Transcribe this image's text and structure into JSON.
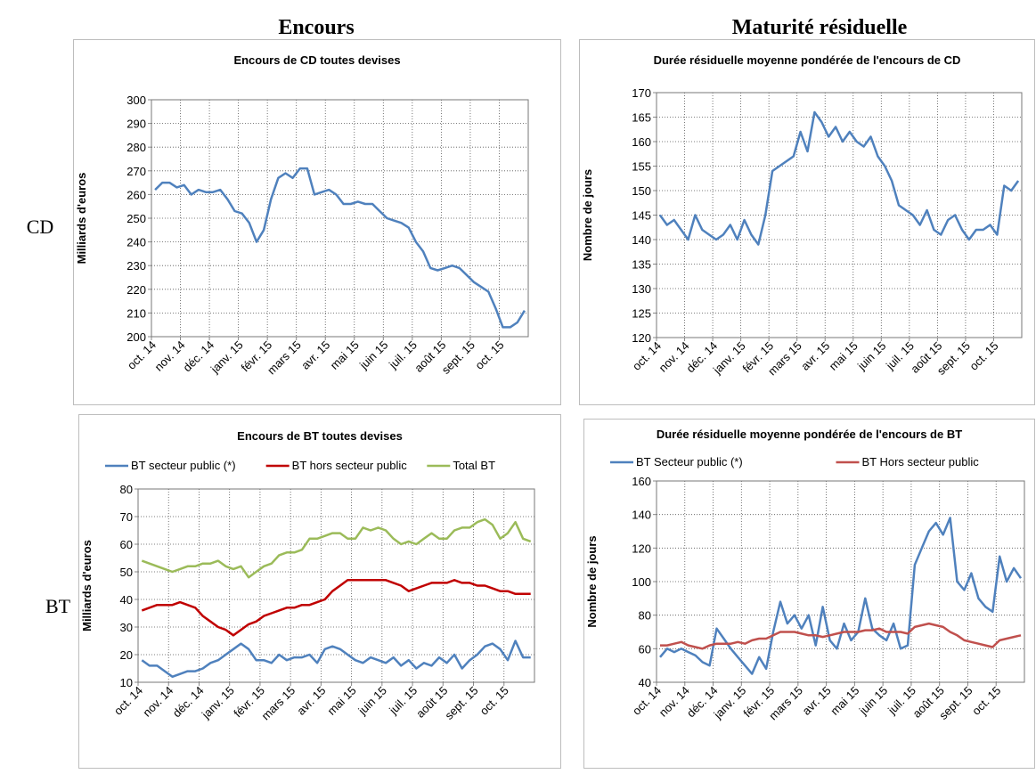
{
  "headings": {
    "left": "Encours",
    "right": "Maturité résiduelle",
    "rows": [
      "CD",
      "BT"
    ]
  },
  "chart_data": [
    {
      "type": "line",
      "title": "Encours de CD toutes devises",
      "y_label": "Milliards d'euros",
      "categories": [
        "oct. 14",
        null,
        null,
        null,
        "nov. 14",
        null,
        null,
        null,
        "déc. 14",
        null,
        null,
        null,
        "janv. 15",
        null,
        null,
        null,
        "févr. 15",
        null,
        null,
        null,
        "mars 15",
        null,
        null,
        null,
        "avr. 15",
        null,
        null,
        null,
        "mai 15",
        null,
        null,
        null,
        "juin 15",
        null,
        null,
        null,
        "juil. 15",
        null,
        null,
        null,
        "août 15",
        null,
        null,
        null,
        "sept. 15",
        null,
        null,
        null,
        "oct. 15",
        null,
        null,
        null
      ],
      "series": [
        {
          "name": null,
          "color": "#4f81bd",
          "values": [
            262,
            265,
            265,
            263,
            264,
            260,
            262,
            261,
            261,
            262,
            258,
            253,
            252,
            248,
            240,
            245,
            258,
            267,
            269,
            267,
            271,
            271,
            260,
            261,
            262,
            260,
            256,
            256,
            257,
            256,
            256,
            253,
            250,
            249,
            248,
            246,
            240,
            236,
            229,
            228,
            229,
            230,
            229,
            226,
            223,
            221,
            219,
            212,
            204,
            204,
            206,
            211
          ]
        }
      ],
      "ylim": [
        200,
        300
      ],
      "yticks": [
        200,
        210,
        220,
        230,
        240,
        250,
        260,
        270,
        280,
        290,
        300
      ],
      "grid": true,
      "legend": null
    },
    {
      "type": "line",
      "title": "Durée résiduelle moyenne pondérée de l'encours de CD",
      "y_label": "Nombre de jours",
      "categories": [
        "oct. 14",
        null,
        null,
        null,
        "nov. 14",
        null,
        null,
        null,
        "déc. 14",
        null,
        null,
        null,
        "janv. 15",
        null,
        null,
        null,
        "févr. 15",
        null,
        null,
        null,
        "mars 15",
        null,
        null,
        null,
        "avr. 15",
        null,
        null,
        null,
        "mai 15",
        null,
        null,
        null,
        "juin 15",
        null,
        null,
        null,
        "juil. 15",
        null,
        null,
        null,
        "août 15",
        null,
        null,
        null,
        "sept. 15",
        null,
        null,
        null,
        "oct. 15",
        null,
        null,
        null
      ],
      "series": [
        {
          "name": null,
          "color": "#4f81bd",
          "values": [
            145,
            143,
            144,
            142,
            140,
            145,
            142,
            141,
            140,
            141,
            143,
            140,
            144,
            141,
            139,
            145,
            154,
            155,
            156,
            157,
            162,
            158,
            166,
            164,
            161,
            163,
            160,
            162,
            160,
            159,
            161,
            157,
            155,
            152,
            147,
            146,
            145,
            143,
            146,
            142,
            141,
            144,
            145,
            142,
            140,
            142,
            142,
            143,
            141,
            151,
            150,
            152
          ]
        }
      ],
      "ylim": [
        120,
        170
      ],
      "yticks": [
        120,
        125,
        130,
        135,
        140,
        145,
        150,
        155,
        160,
        165,
        170
      ],
      "grid": true,
      "legend": null
    },
    {
      "type": "line",
      "title": "Encours de BT toutes devises",
      "y_label": "Milliards d'euros",
      "categories": [
        "oct. 14",
        null,
        null,
        null,
        "nov. 14",
        null,
        null,
        null,
        "déc. 14",
        null,
        null,
        null,
        "janv. 15",
        null,
        null,
        null,
        "févr. 15",
        null,
        null,
        null,
        "mars 15",
        null,
        null,
        null,
        "avr. 15",
        null,
        null,
        null,
        "mai 15",
        null,
        null,
        null,
        "juin 15",
        null,
        null,
        null,
        "juil. 15",
        null,
        null,
        null,
        "août 15",
        null,
        null,
        null,
        "sept. 15",
        null,
        null,
        null,
        "oct. 15",
        null,
        null,
        null
      ],
      "series": [
        {
          "name": "BT secteur public (*)",
          "color": "#4f81bd",
          "values": [
            18,
            16,
            16,
            14,
            12,
            13,
            14,
            14,
            15,
            17,
            18,
            20,
            22,
            24,
            22,
            18,
            18,
            17,
            20,
            18,
            19,
            19,
            20,
            17,
            22,
            23,
            22,
            20,
            18,
            17,
            19,
            18,
            17,
            19,
            16,
            18,
            15,
            17,
            16,
            19,
            17,
            20,
            15,
            18,
            20,
            23,
            24,
            22,
            18,
            25,
            19,
            19
          ]
        },
        {
          "name": "BT hors secteur public",
          "color": "#c00000",
          "values": [
            36,
            37,
            38,
            38,
            38,
            39,
            38,
            37,
            34,
            32,
            30,
            29,
            27,
            29,
            31,
            32,
            34,
            35,
            36,
            37,
            37,
            38,
            38,
            39,
            40,
            43,
            45,
            47,
            47,
            47,
            47,
            47,
            47,
            46,
            45,
            43,
            44,
            45,
            46,
            46,
            46,
            47,
            46,
            46,
            45,
            45,
            44,
            43,
            43,
            42,
            42,
            42
          ]
        },
        {
          "name": "Total BT",
          "color": "#9bbb59",
          "values": [
            54,
            53,
            52,
            51,
            50,
            51,
            52,
            52,
            53,
            53,
            54,
            52,
            51,
            52,
            48,
            50,
            52,
            53,
            56,
            57,
            57,
            58,
            62,
            62,
            63,
            64,
            64,
            62,
            62,
            66,
            65,
            66,
            65,
            62,
            60,
            61,
            60,
            62,
            64,
            62,
            62,
            65,
            66,
            66,
            68,
            69,
            67,
            62,
            64,
            68,
            62,
            61
          ]
        }
      ],
      "ylim": [
        10,
        80
      ],
      "yticks": [
        10,
        20,
        30,
        40,
        50,
        60,
        70,
        80
      ],
      "grid": true,
      "legend": "top"
    },
    {
      "type": "line",
      "title": "Durée résiduelle moyenne pondérée de l'encours de BT",
      "y_label": "Nombre de jours",
      "categories": [
        "oct. 14",
        null,
        null,
        null,
        "nov. 14",
        null,
        null,
        null,
        "déc. 14",
        null,
        null,
        null,
        "janv. 15",
        null,
        null,
        null,
        "févr. 15",
        null,
        null,
        null,
        "mars 15",
        null,
        null,
        null,
        "avr. 15",
        null,
        null,
        null,
        "mai 15",
        null,
        null,
        null,
        "juin 15",
        null,
        null,
        null,
        "juil. 15",
        null,
        null,
        null,
        "août 15",
        null,
        null,
        null,
        "sept. 15",
        null,
        null,
        null,
        "oct. 15",
        null,
        null,
        null
      ],
      "series": [
        {
          "name": "BT Secteur public (*)",
          "color": "#4f81bd",
          "values": [
            55,
            60,
            58,
            60,
            58,
            56,
            52,
            50,
            72,
            66,
            60,
            55,
            50,
            45,
            55,
            48,
            70,
            88,
            75,
            80,
            72,
            80,
            62,
            85,
            65,
            60,
            75,
            65,
            70,
            90,
            72,
            68,
            65,
            75,
            60,
            62,
            110,
            120,
            130,
            135,
            128,
            138,
            100,
            95,
            105,
            90,
            85,
            82,
            115,
            100,
            108,
            102
          ]
        },
        {
          "name": "BT Hors secteur public",
          "color": "#c0504d",
          "values": [
            62,
            62,
            63,
            64,
            62,
            61,
            60,
            62,
            63,
            63,
            63,
            64,
            63,
            65,
            66,
            66,
            68,
            70,
            70,
            70,
            69,
            68,
            68,
            67,
            68,
            69,
            70,
            70,
            70,
            71,
            71,
            72,
            70,
            70,
            70,
            69,
            73,
            74,
            75,
            74,
            73,
            70,
            68,
            65,
            64,
            63,
            62,
            61,
            65,
            66,
            67,
            68
          ]
        }
      ],
      "ylim": [
        40,
        160
      ],
      "yticks": [
        40,
        60,
        80,
        100,
        120,
        140,
        160
      ],
      "grid": true,
      "legend": "top"
    }
  ]
}
